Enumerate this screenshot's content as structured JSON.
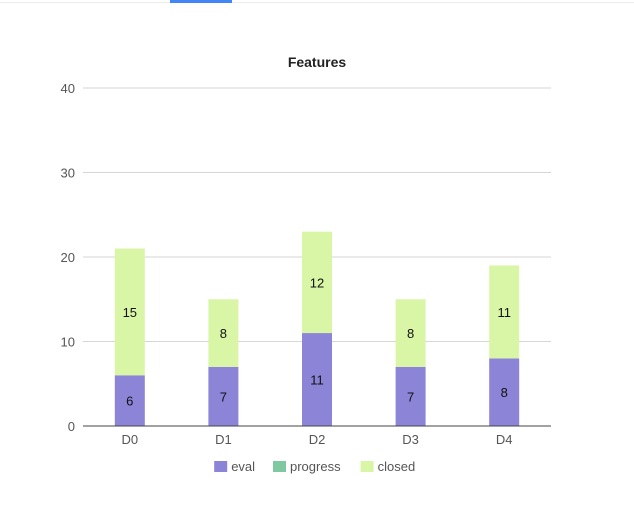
{
  "chart_data": {
    "type": "bar",
    "stacked": true,
    "title": "Features",
    "xlabel": "",
    "ylabel": "",
    "categories": [
      "D0",
      "D1",
      "D2",
      "D3",
      "D4"
    ],
    "ylim": [
      0,
      40
    ],
    "yticks": [
      0,
      10,
      20,
      30,
      40
    ],
    "grid": true,
    "legend_position": "bottom",
    "series": [
      {
        "name": "eval",
        "color": "#8b84d7",
        "values": [
          6,
          7,
          11,
          7,
          8
        ]
      },
      {
        "name": "progress",
        "color": "#80c8a0",
        "values": [
          0,
          0,
          0,
          0,
          0
        ]
      },
      {
        "name": "closed",
        "color": "#d9f5a6",
        "values": [
          15,
          8,
          12,
          8,
          11
        ]
      }
    ]
  }
}
